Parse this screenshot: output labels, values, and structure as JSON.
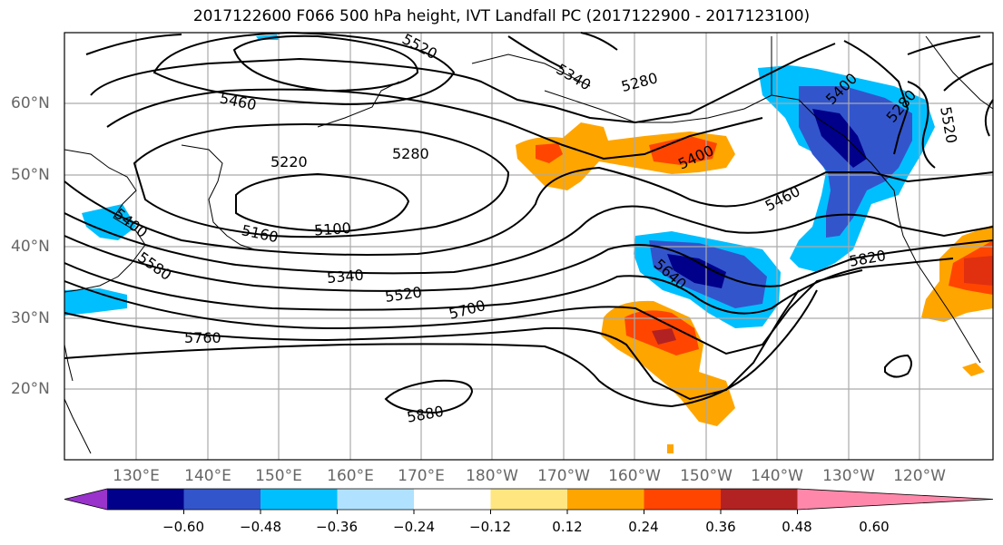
{
  "title": "2017122600 F066 500 hPa height, IVT Landfall PC (2017122900 - 2017123100)",
  "lat_labels": [
    "60°N",
    "50°N",
    "40°N",
    "30°N",
    "20°N"
  ],
  "lon_labels": [
    "130°E",
    "140°E",
    "150°E",
    "160°E",
    "170°E",
    "180°W",
    "170°W",
    "160°W",
    "150°W",
    "140°W",
    "130°W",
    "120°W"
  ],
  "contour_labels": [
    "5520",
    "5340",
    "5280",
    "5460",
    "5220",
    "5280",
    "5100",
    "5160",
    "5400",
    "5460",
    "5400",
    "5280",
    "5520",
    "5580",
    "5400",
    "5340",
    "5520",
    "5700",
    "5640",
    "5820",
    "5760",
    "5880"
  ],
  "colorbar": {
    "ticks": [
      "−0.60",
      "−0.48",
      "−0.36",
      "−0.24",
      "−0.12",
      "0.12",
      "0.24",
      "0.36",
      "0.48",
      "0.60"
    ],
    "colors": [
      "#9933cc",
      "#00008b",
      "#3355cc",
      "#00bfff",
      "#b0e2ff",
      "#ffffff",
      "#ffe680",
      "#ffa500",
      "#ff4500",
      "#b22222",
      "#ff88aa"
    ]
  }
}
